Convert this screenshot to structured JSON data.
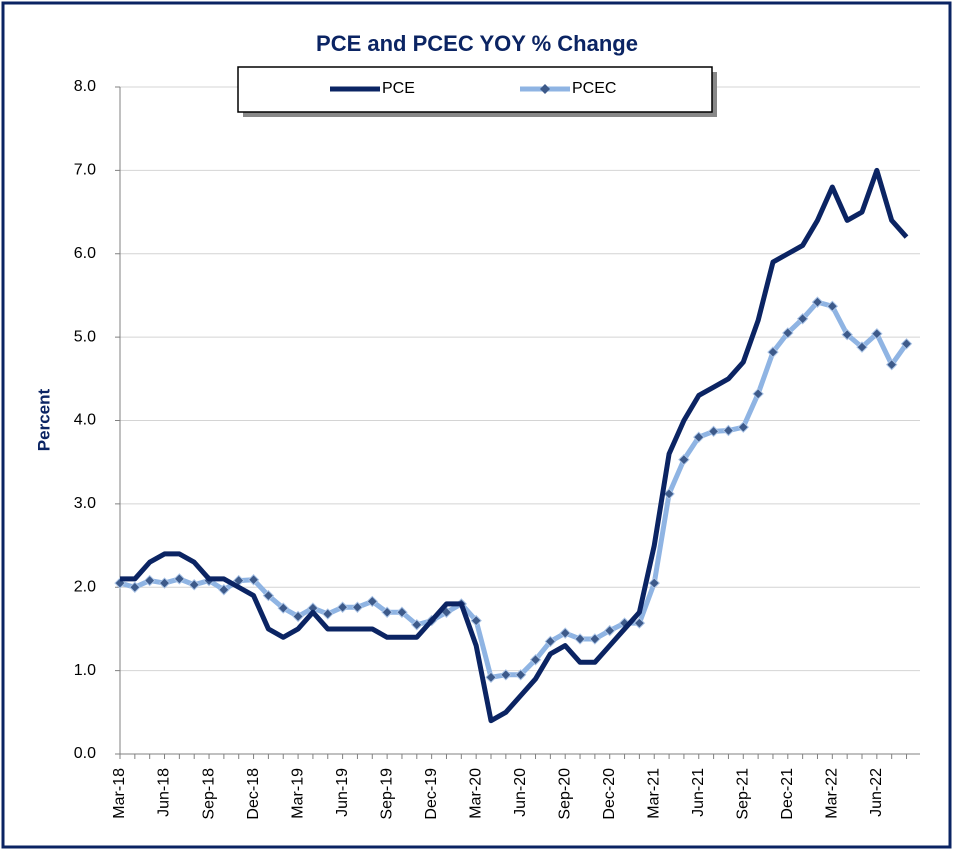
{
  "chart_data": {
    "type": "line",
    "title": "PCE and PCEC YOY % Change",
    "y_label": "Percent",
    "categories": [
      "Mar-18",
      null,
      null,
      "Jun-18",
      null,
      null,
      "Sep-18",
      null,
      null,
      "Dec-18",
      null,
      null,
      "Mar-19",
      null,
      null,
      "Jun-19",
      null,
      null,
      "Sep-19",
      null,
      null,
      "Dec-19",
      null,
      null,
      "Mar-20",
      null,
      null,
      "Jun-20",
      null,
      null,
      "Sep-20",
      null,
      null,
      "Dec-20",
      null,
      null,
      "Mar-21",
      null,
      null,
      "Jun-21",
      null,
      null,
      "Sep-21",
      null,
      null,
      "Dec-21",
      null,
      null,
      "Mar-22",
      null,
      null,
      "Jun-22",
      null,
      null
    ],
    "series": [
      {
        "name": "PCE",
        "color": "#0b2463",
        "values": [
          2.1,
          2.1,
          2.3,
          2.4,
          2.4,
          2.3,
          2.1,
          2.1,
          2.0,
          1.9,
          1.5,
          1.4,
          1.5,
          1.7,
          1.5,
          1.5,
          1.5,
          1.5,
          1.4,
          1.4,
          1.4,
          1.6,
          1.8,
          1.8,
          1.3,
          0.4,
          0.5,
          0.7,
          0.9,
          1.2,
          1.3,
          1.1,
          1.1,
          1.3,
          1.5,
          1.7,
          2.5,
          3.6,
          4.0,
          4.3,
          4.4,
          4.5,
          4.7,
          5.2,
          5.9,
          6.0,
          6.1,
          6.4,
          6.8,
          6.4,
          6.5,
          7.0,
          6.4,
          6.2
        ]
      },
      {
        "name": "PCEC",
        "color": "#8fb4e3",
        "marker_color": "#3d5a8a",
        "values": [
          2.05,
          2.0,
          2.08,
          2.05,
          2.1,
          2.03,
          2.08,
          1.97,
          2.08,
          2.09,
          1.9,
          1.75,
          1.65,
          1.75,
          1.68,
          1.76,
          1.76,
          1.83,
          1.7,
          1.7,
          1.55,
          1.6,
          1.7,
          1.8,
          1.6,
          0.92,
          0.95,
          0.95,
          1.13,
          1.35,
          1.45,
          1.38,
          1.38,
          1.48,
          1.57,
          1.57,
          2.05,
          3.12,
          3.53,
          3.8,
          3.87,
          3.88,
          3.92,
          4.32,
          4.82,
          5.05,
          5.22,
          5.42,
          5.37,
          5.03,
          4.88,
          5.04,
          4.67,
          4.92
        ]
      }
    ],
    "ylim": [
      0,
      8
    ],
    "yticks": [
      {
        "value": 0,
        "label": "0.0"
      },
      {
        "value": 1,
        "label": "1.0"
      },
      {
        "value": 2,
        "label": "2.0"
      },
      {
        "value": 3,
        "label": "3.0"
      },
      {
        "value": 4,
        "label": "4.0"
      },
      {
        "value": 5,
        "label": "5.0"
      },
      {
        "value": 6,
        "label": "6.0"
      },
      {
        "value": 7,
        "label": "7.0"
      },
      {
        "value": 8,
        "label": "8.0"
      }
    ],
    "grid": true,
    "legend": "top"
  }
}
